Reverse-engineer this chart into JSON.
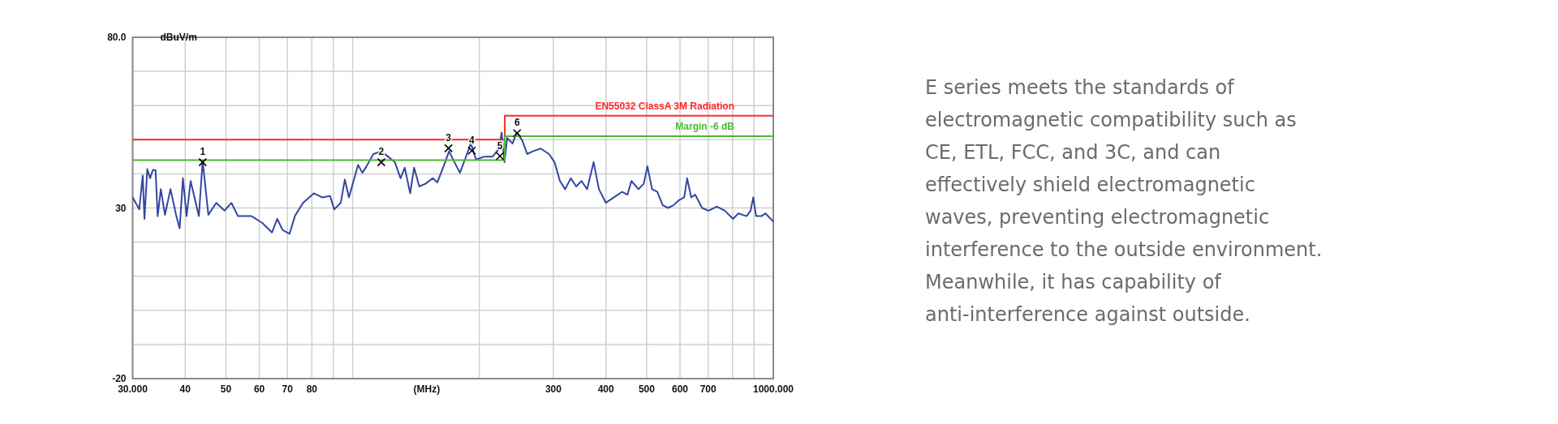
{
  "chart_data": {
    "type": "line",
    "ylabel": "dBuV/m",
    "xlabel": "(MHz)",
    "log": "x",
    "xlim": [
      30,
      1000
    ],
    "ylim": [
      -20,
      80
    ],
    "xticks": [
      {
        "value": 30,
        "label": "30.000"
      },
      40,
      50,
      60,
      70,
      80,
      {
        "value": 90,
        "label": null
      },
      {
        "value": 100,
        "label": null
      },
      {
        "value": 200,
        "label": null
      },
      300,
      400,
      500,
      600,
      700,
      {
        "value": 800,
        "label": null
      },
      {
        "value": 900,
        "label": null
      },
      {
        "value": 1000,
        "label": "1000.000"
      }
    ],
    "yticks": [
      {
        "value": -20,
        "label": "-20"
      },
      {
        "value": -10,
        "label": null
      },
      {
        "value": 0,
        "label": null
      },
      {
        "value": 10,
        "label": null
      },
      {
        "value": 20,
        "label": null
      },
      30,
      {
        "value": 40,
        "label": null
      },
      {
        "value": 50,
        "label": null
      },
      {
        "value": 60,
        "label": null
      },
      {
        "value": 70,
        "label": null
      },
      {
        "value": 80,
        "label": "80.0"
      }
    ],
    "grid": true,
    "legend": false,
    "series": [
      {
        "color": "#3346a0",
        "x": [
          30,
          31.1,
          31.7,
          32,
          32.5,
          33,
          33.5,
          34,
          34.4,
          35,
          35.8,
          36.9,
          38.1,
          38.8,
          39.5,
          40.3,
          41.2,
          43.1,
          44,
          45.4,
          47.4,
          49.6,
          51.5,
          53.4,
          57.5,
          61,
          64.3,
          66.2,
          68.2,
          70.8,
          72.9,
          76.2,
          80.9,
          84.5,
          88.4,
          90.4,
          93.7,
          95.8,
          98,
          103,
          105.5,
          107.9,
          112,
          117,
          121.5,
          126,
          130,
          133,
          137,
          140,
          144,
          149,
          155,
          159,
          165,
          169.5,
          174.6,
          179.9,
          185,
          191,
          196.5,
          205,
          215,
          223,
          226,
          229.6,
          233,
          240,
          245.4,
          253,
          260,
          268,
          280,
          293,
          302,
          311,
          320,
          330,
          340,
          350,
          361,
          374,
          385,
          400,
          418,
          437,
          450,
          460,
          478,
          492,
          502,
          515,
          530,
          546,
          562,
          579,
          597,
          614,
          624,
          638,
          652,
          677,
          702,
          734,
          767,
          802,
          826,
          864,
          883,
          896,
          910,
          937,
          958,
          1000
        ],
        "values": [
          33.1,
          29.6,
          39.5,
          26.8,
          41.4,
          38.7,
          41.1,
          41.1,
          27.6,
          35.5,
          28,
          35.5,
          27.6,
          24,
          38.7,
          27.6,
          37.9,
          27.6,
          43.8,
          28,
          31.5,
          29.2,
          31.5,
          27.6,
          27.6,
          25.6,
          22.8,
          26.8,
          23.5,
          22.4,
          27.6,
          31.5,
          34.3,
          33.1,
          33.5,
          29.6,
          31.5,
          38.3,
          33.1,
          42.6,
          40.3,
          42.2,
          45.8,
          46.6,
          45,
          43.4,
          38.7,
          41.8,
          34.3,
          41.8,
          36.3,
          37.1,
          38.7,
          37.5,
          42.6,
          46.6,
          43.4,
          40.3,
          44.2,
          48.9,
          44.2,
          45,
          45,
          47.4,
          52.1,
          43.4,
          50.5,
          48.9,
          52.1,
          49.8,
          45.8,
          46.6,
          47.4,
          45.8,
          43.4,
          37.9,
          35.5,
          38.7,
          36.3,
          37.9,
          35.5,
          43.4,
          35.5,
          31.5,
          33.1,
          34.7,
          33.9,
          37.9,
          35.5,
          37.1,
          42.2,
          35.5,
          34.7,
          30.8,
          30,
          30.8,
          32.3,
          33.1,
          38.7,
          33.1,
          33.9,
          30,
          29.2,
          30.4,
          29.2,
          26.8,
          28.4,
          27.6,
          29.2,
          33.1,
          27.6,
          27.6,
          28.4,
          26
        ]
      },
      {
        "type": "step",
        "name": "EN55032 ClassA 3M Radiation",
        "color": "#ff2a2a",
        "x": [
          30,
          230,
          1000
        ],
        "values": [
          50,
          57,
          57
        ]
      },
      {
        "type": "step",
        "name": "Margin -6 dB",
        "color": "#4cb832",
        "x": [
          30,
          230,
          1000
        ],
        "values": [
          44,
          51,
          51
        ]
      },
      {
        "type": "scatter",
        "marker": "cross",
        "color": "#000000",
        "x": [
          44,
          117,
          169,
          192,
          224,
          246
        ],
        "values": [
          43.4,
          43.4,
          47.5,
          46.8,
          45.2,
          51.9
        ]
      }
    ],
    "annotations": [
      {
        "text": "1",
        "x": 44,
        "y": 43.4
      },
      {
        "text": "2",
        "x": 117,
        "y": 43.4
      },
      {
        "text": "3",
        "x": 169,
        "y": 47.5
      },
      {
        "text": "4",
        "x": 192,
        "y": 46.8
      },
      {
        "text": "5",
        "x": 224,
        "y": 45.2
      },
      {
        "text": "6",
        "x": 246,
        "y": 51.9
      },
      "E series meets the standards of electromagnetic compatibility such as CE, ETL, FCC, and 3C, and can effectively shield electromagnetic waves, preventing electromagnetic interference to the outside environment. Meanwhile, it has capability of anti-interference against outside."
    ]
  }
}
